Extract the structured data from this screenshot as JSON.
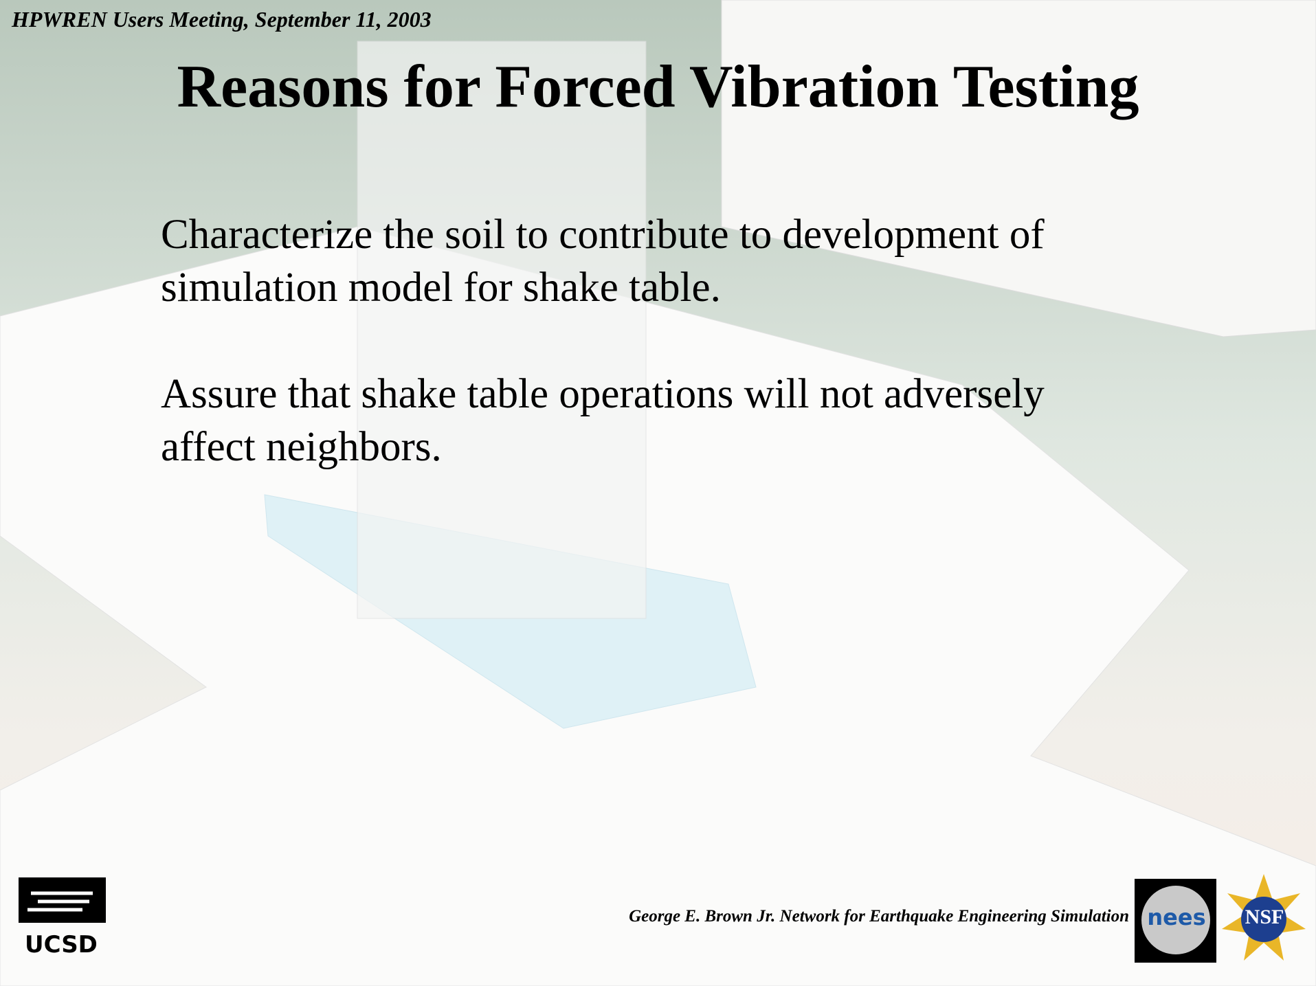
{
  "header": {
    "meeting": "HPWREN Users Meeting, September 11, 2003"
  },
  "title": "Reasons for Forced Vibration Testing",
  "bullets": [
    "Characterize the soil to contribute to development of simulation model for shake table.",
    "Assure that shake table operations will not adversely affect neighbors."
  ],
  "footer": {
    "text": "George E. Brown Jr. Network for Earthquake Engineering Simulation"
  },
  "logos": {
    "ucsd": "UCSD",
    "nees": "nees",
    "nsf": "NSF"
  }
}
